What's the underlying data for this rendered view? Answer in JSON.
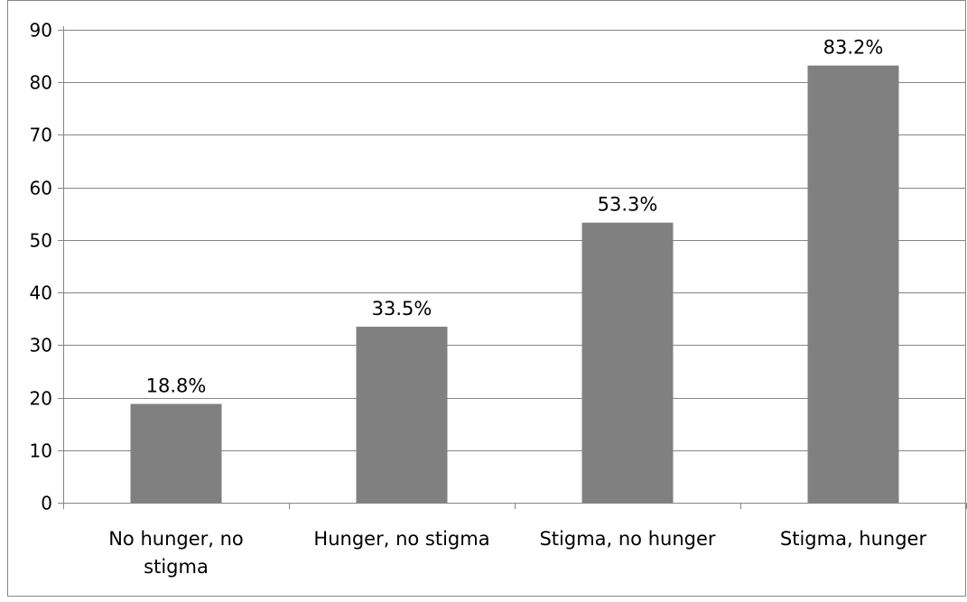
{
  "chart_data": {
    "type": "bar",
    "title": "",
    "xlabel": "",
    "ylabel": "",
    "categories": [
      "No hunger, no stigma",
      "Hunger, no stigma",
      "Stigma, no hunger",
      "Stigma, hunger"
    ],
    "category_lines": [
      [
        "No hunger, no",
        "stigma"
      ],
      [
        "Hunger, no stigma"
      ],
      [
        "Stigma, no hunger"
      ],
      [
        "Stigma, hunger"
      ]
    ],
    "values": [
      18.8,
      33.5,
      53.3,
      83.2
    ],
    "data_labels": [
      "18.8%",
      "33.5%",
      "53.3%",
      "83.2%"
    ],
    "ylim": [
      0,
      90
    ],
    "yticks": [
      "0",
      "10",
      "20",
      "30",
      "40",
      "50",
      "60",
      "70",
      "80",
      "90"
    ],
    "grid": true,
    "legend": "none",
    "colors": {
      "bar": "#808080",
      "grid": "#868686",
      "axis": "#868686",
      "border": "#868686"
    }
  }
}
